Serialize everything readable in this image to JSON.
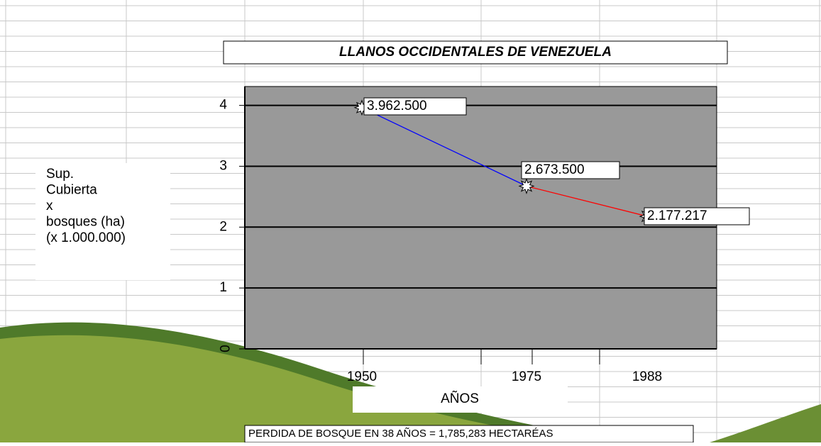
{
  "chart_data": {
    "type": "line",
    "title": "LLANOS OCCIDENTALES DE VENEZUELA",
    "y_label_lines": [
      "Sup.",
      "Cubierta",
      " x",
      "bosques (ha)",
      "(x 1.000.000)"
    ],
    "x_label": "AÑOS",
    "footnote": "PERDIDA DE BOSQUE EN 38 AÑOS = 1,785,283 HECTARÉAS",
    "categories": [
      "1950",
      "1975",
      "1988"
    ],
    "values": [
      3.9625,
      2.6735,
      2.177217
    ],
    "value_labels": [
      "3.962.500",
      "2.673.500",
      "2.177.217"
    ],
    "segment_colors": [
      "#0000ff",
      "#ff0000"
    ],
    "plot_color": "#999999",
    "ylim": [
      0,
      4.31
    ],
    "yticks": [
      0,
      1,
      2,
      3,
      4
    ],
    "grid": true
  }
}
